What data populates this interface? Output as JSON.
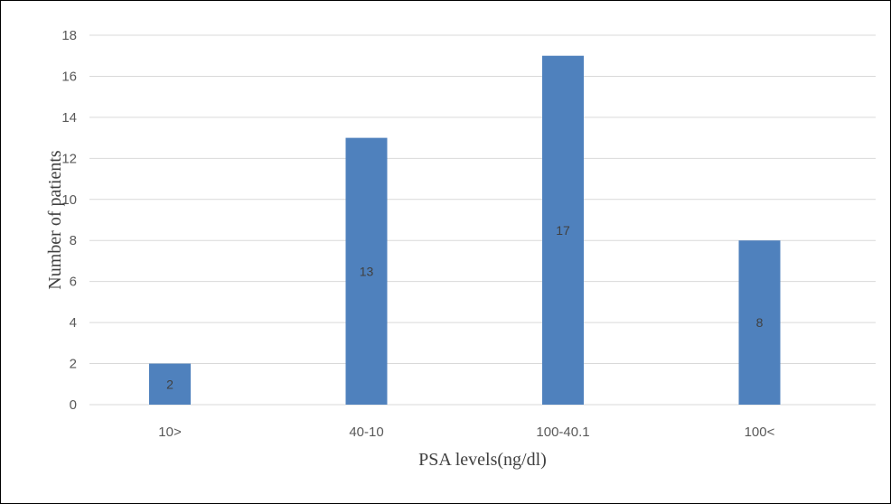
{
  "chart_data": {
    "type": "bar",
    "title": "",
    "xlabel": "PSA levels(ng/dl)",
    "ylabel": "Number of patients",
    "categories": [
      "10>",
      "40-10",
      "100-40.1",
      "100<"
    ],
    "series": [
      {
        "values": [
          2,
          13,
          17,
          8
        ],
        "color": "#4f81bd"
      }
    ],
    "data_labels": [
      "2",
      "13",
      "17",
      "8"
    ],
    "ylim": [
      0,
      18
    ],
    "yticks": [
      0,
      2,
      4,
      6,
      8,
      10,
      12,
      14,
      16,
      18
    ],
    "grid": true,
    "legend": "none"
  }
}
